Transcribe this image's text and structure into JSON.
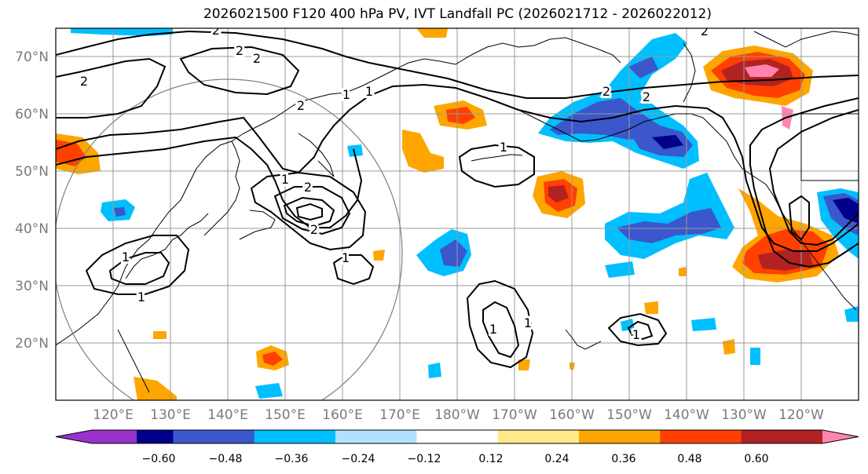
{
  "title": "2026021500 F120 400 hPa PV, IVT Landfall PC (2026021712 - 2026022012)",
  "map": {
    "lat_labels": [
      "70°N",
      "60°N",
      "50°N",
      "40°N",
      "30°N",
      "20°N"
    ],
    "lon_labels": [
      "120°E",
      "130°E",
      "140°E",
      "150°E",
      "160°E",
      "170°E",
      "180°W",
      "170°W",
      "160°W",
      "150°W",
      "140°W",
      "130°W",
      "120°W"
    ],
    "contour_labels": [
      "2",
      "2",
      "2",
      "2",
      "2",
      "2",
      "2",
      "2",
      "1",
      "1",
      "1",
      "1",
      "1",
      "1",
      "1",
      "1",
      "2",
      "2",
      "1",
      "1"
    ]
  },
  "colorbar": {
    "tick_labels": [
      "−0.60",
      "−0.48",
      "−0.36",
      "−0.24",
      "−0.12",
      "0.12",
      "0.24",
      "0.36",
      "0.48",
      "0.60"
    ],
    "colors": [
      "#9932cc",
      "#00008b",
      "#3a57cc",
      "#00bfff",
      "#b0e2ff",
      "#ffffff",
      "#ffe98a",
      "#ffa500",
      "#ff4000",
      "#b22222",
      "#ff85b0"
    ]
  }
}
